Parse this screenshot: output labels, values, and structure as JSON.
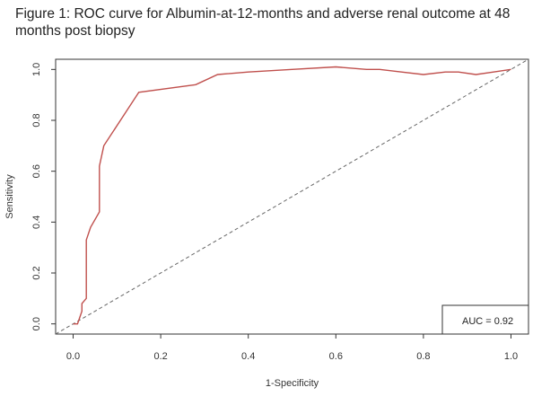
{
  "title": "Figure 1: ROC curve for Albumin-at-12-months and adverse renal outcome at 48 months post biopsy",
  "chart_data": {
    "type": "line",
    "xlabel": "1-Specificity",
    "ylabel": "Sensitivity",
    "xlim": [
      -0.04,
      1.04
    ],
    "ylim": [
      -0.04,
      1.04
    ],
    "xticks": [
      0.0,
      0.2,
      0.4,
      0.6,
      0.8,
      1.0
    ],
    "xtick_labels": [
      "0.0",
      "0.2",
      "0.4",
      "0.6",
      "0.8",
      "1.0"
    ],
    "yticks": [
      0.0,
      0.2,
      0.4,
      0.6,
      0.8,
      1.0
    ],
    "ytick_labels": [
      "0.0",
      "0.2",
      "0.4",
      "0.6",
      "0.8",
      "1.0"
    ],
    "grid": false,
    "series": [
      {
        "color": "#c0504d",
        "x": [
          0.0,
          0.01,
          0.02,
          0.02,
          0.03,
          0.03,
          0.04,
          0.06,
          0.06,
          0.07,
          0.15,
          0.28,
          0.33,
          0.4,
          0.5,
          0.6,
          0.67,
          0.7,
          0.75,
          0.8,
          0.85,
          0.88,
          0.92,
          0.96,
          1.0
        ],
        "y": [
          0.0,
          0.0,
          0.05,
          0.08,
          0.1,
          0.33,
          0.38,
          0.44,
          0.62,
          0.7,
          0.91,
          0.94,
          0.98,
          0.99,
          1.0,
          1.01,
          1.0,
          1.0,
          0.99,
          0.98,
          0.99,
          0.99,
          0.98,
          0.99,
          1.0
        ]
      }
    ],
    "reference_line": {
      "x": [
        -0.04,
        1.04
      ],
      "y": [
        -0.04,
        1.04
      ],
      "style": "dashed",
      "color": "#666666"
    },
    "annotation": {
      "text": "AUC = 0.92",
      "placement": "bottom-right"
    }
  }
}
